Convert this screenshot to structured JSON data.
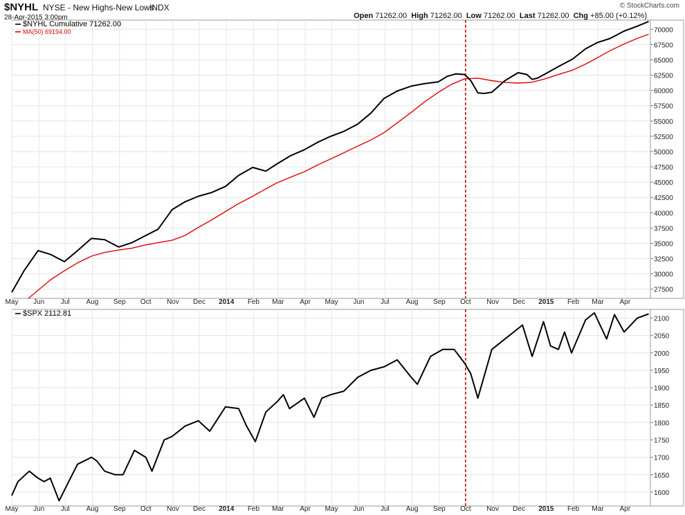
{
  "header": {
    "symbol": "$NYHL",
    "exchange_desc": "NYSE - New Highs-New Lows",
    "type": "INDX",
    "datetime": "28-Apr-2015 3:00pm",
    "brand": "© StockCharts.com",
    "ohlc": {
      "open_label": "Open",
      "open": "71262.00",
      "high_label": "High",
      "high": "71262.00",
      "low_label": "Low",
      "low": "71262.00",
      "last_label": "Last",
      "last": "71262.00",
      "chg_label": "Chg",
      "chg": "+85.00 (+0.12%)"
    }
  },
  "chart_data": [
    {
      "type": "line",
      "legend": "top-left",
      "series": [
        {
          "name": "$NYHL Cumulative 71262.00",
          "color": "#000000",
          "x": [
            "2013-05-01",
            "2013-05-15",
            "2013-05-31",
            "2013-06-14",
            "2013-06-30",
            "2013-07-15",
            "2013-07-31",
            "2013-08-15",
            "2013-08-31",
            "2013-09-15",
            "2013-09-30",
            "2013-10-15",
            "2013-10-31",
            "2013-11-15",
            "2013-11-30",
            "2013-12-15",
            "2013-12-31",
            "2014-01-15",
            "2014-01-31",
            "2014-02-15",
            "2014-02-28",
            "2014-03-15",
            "2014-03-31",
            "2014-04-15",
            "2014-04-30",
            "2014-05-15",
            "2014-05-31",
            "2014-06-15",
            "2014-06-30",
            "2014-07-15",
            "2014-07-31",
            "2014-08-15",
            "2014-08-31",
            "2014-09-10",
            "2014-09-20",
            "2014-09-30",
            "2014-10-07",
            "2014-10-15",
            "2014-10-22",
            "2014-10-31",
            "2014-11-15",
            "2014-11-30",
            "2014-12-10",
            "2014-12-16",
            "2014-12-22",
            "2014-12-31",
            "2015-01-15",
            "2015-01-31",
            "2015-02-15",
            "2015-02-28",
            "2015-03-15",
            "2015-03-31",
            "2015-04-15",
            "2015-04-28"
          ],
          "values": [
            27000,
            30500,
            33800,
            33200,
            32000,
            33800,
            35800,
            35600,
            34400,
            35100,
            36200,
            37300,
            40500,
            41800,
            42700,
            43300,
            44300,
            46100,
            47400,
            46800,
            48000,
            49300,
            50300,
            51500,
            52500,
            53300,
            54500,
            56300,
            58700,
            59900,
            60700,
            61100,
            61400,
            62300,
            62700,
            62600,
            61600,
            59600,
            59500,
            59700,
            61600,
            62900,
            62600,
            61800,
            62000,
            62700,
            63900,
            65100,
            66800,
            67800,
            68500,
            69700,
            70500,
            71262
          ]
        },
        {
          "name": "MA(50) 69194.00",
          "color": "#e00000",
          "x": [
            "2013-05-20",
            "2013-06-14",
            "2013-06-30",
            "2013-07-15",
            "2013-07-31",
            "2013-08-15",
            "2013-08-31",
            "2013-09-15",
            "2013-09-30",
            "2013-10-15",
            "2013-10-31",
            "2013-11-15",
            "2013-11-30",
            "2013-12-15",
            "2013-12-31",
            "2014-01-15",
            "2014-01-31",
            "2014-02-15",
            "2014-02-28",
            "2014-03-15",
            "2014-03-31",
            "2014-04-15",
            "2014-04-30",
            "2014-05-15",
            "2014-05-31",
            "2014-06-15",
            "2014-06-30",
            "2014-07-15",
            "2014-07-31",
            "2014-08-15",
            "2014-08-31",
            "2014-09-15",
            "2014-09-30",
            "2014-10-15",
            "2014-10-31",
            "2014-11-15",
            "2014-11-30",
            "2014-12-15",
            "2014-12-31",
            "2015-01-15",
            "2015-01-31",
            "2015-02-15",
            "2015-02-28",
            "2015-03-15",
            "2015-03-31",
            "2015-04-15",
            "2015-04-28"
          ],
          "values": [
            26000,
            29000,
            30500,
            31800,
            32900,
            33500,
            33900,
            34200,
            34700,
            35100,
            35500,
            36300,
            37600,
            38800,
            40200,
            41500,
            42700,
            43900,
            44900,
            45800,
            46700,
            47800,
            48800,
            49800,
            50900,
            51900,
            53100,
            54700,
            56400,
            58100,
            59700,
            61000,
            61900,
            62000,
            61600,
            61300,
            61200,
            61300,
            61900,
            62600,
            63300,
            64300,
            65300,
            66500,
            67600,
            68500,
            69194
          ]
        }
      ],
      "ylim": [
        26000,
        71500
      ],
      "yticks": [
        27500,
        30000,
        32500,
        35000,
        37500,
        40000,
        42500,
        45000,
        47500,
        50000,
        52500,
        55000,
        57500,
        60000,
        62500,
        65000,
        67500,
        70000
      ],
      "xticks": [
        "May",
        "Jun",
        "Jul",
        "Aug",
        "Sep",
        "Oct",
        "Nov",
        "Dec",
        "2014",
        "Feb",
        "Mar",
        "Apr",
        "May",
        "Jun",
        "Jul",
        "Aug",
        "Sep",
        "Oct",
        "Nov",
        "Dec",
        "2015",
        "Feb",
        "Mar",
        "Apr"
      ],
      "annotation": {
        "x": "2014-10-01",
        "style": "dashed",
        "color": "#cc0000"
      },
      "grid": true
    },
    {
      "type": "line",
      "legend": "top-left",
      "series": [
        {
          "name": "$SPX 2112.81",
          "color": "#000000",
          "x": [
            "2013-05-01",
            "2013-05-08",
            "2013-05-21",
            "2013-05-31",
            "2013-06-07",
            "2013-06-14",
            "2013-06-24",
            "2013-07-05",
            "2013-07-15",
            "2013-07-31",
            "2013-08-06",
            "2013-08-15",
            "2013-08-27",
            "2013-09-05",
            "2013-09-18",
            "2013-10-01",
            "2013-10-08",
            "2013-10-22",
            "2013-10-31",
            "2013-11-15",
            "2013-11-30",
            "2013-12-13",
            "2013-12-31",
            "2014-01-15",
            "2014-01-24",
            "2014-02-03",
            "2014-02-15",
            "2014-02-28",
            "2014-03-07",
            "2014-03-14",
            "2014-03-31",
            "2014-04-11",
            "2014-04-20",
            "2014-04-30",
            "2014-05-15",
            "2014-05-31",
            "2014-06-15",
            "2014-06-30",
            "2014-07-15",
            "2014-07-31",
            "2014-08-07",
            "2014-08-22",
            "2014-09-05",
            "2014-09-18",
            "2014-09-30",
            "2014-10-07",
            "2014-10-15",
            "2014-10-31",
            "2014-11-15",
            "2014-11-30",
            "2014-12-05",
            "2014-12-16",
            "2014-12-29",
            "2015-01-06",
            "2015-01-15",
            "2015-01-22",
            "2015-01-30",
            "2015-02-15",
            "2015-02-25",
            "2015-03-11",
            "2015-03-20",
            "2015-03-31",
            "2015-04-15",
            "2015-04-28"
          ],
          "values": [
            1590,
            1630,
            1660,
            1640,
            1630,
            1640,
            1575,
            1630,
            1680,
            1700,
            1690,
            1660,
            1650,
            1650,
            1720,
            1700,
            1660,
            1750,
            1760,
            1790,
            1805,
            1775,
            1845,
            1840,
            1790,
            1745,
            1830,
            1860,
            1880,
            1840,
            1870,
            1815,
            1870,
            1880,
            1890,
            1930,
            1950,
            1960,
            1980,
            1930,
            1910,
            1990,
            2010,
            2010,
            1970,
            1940,
            1870,
            2010,
            2040,
            2070,
            2080,
            1990,
            2090,
            2020,
            2010,
            2060,
            2000,
            2095,
            2115,
            2040,
            2110,
            2060,
            2100,
            2112
          ]
        }
      ],
      "ylim": [
        1560,
        2125
      ],
      "yticks": [
        1600,
        1650,
        1700,
        1750,
        1800,
        1850,
        1900,
        1950,
        2000,
        2050,
        2100
      ],
      "xticks": [
        "May",
        "Jun",
        "Jul",
        "Aug",
        "Sep",
        "Oct",
        "Nov",
        "Dec",
        "2014",
        "Feb",
        "Mar",
        "Apr",
        "May",
        "Jun",
        "Jul",
        "Aug",
        "Sep",
        "Oct",
        "Nov",
        "Dec",
        "2015",
        "Feb",
        "Mar",
        "Apr"
      ],
      "annotation": {
        "x": "2014-10-01",
        "style": "dashed",
        "color": "#cc0000"
      },
      "grid": true
    }
  ]
}
